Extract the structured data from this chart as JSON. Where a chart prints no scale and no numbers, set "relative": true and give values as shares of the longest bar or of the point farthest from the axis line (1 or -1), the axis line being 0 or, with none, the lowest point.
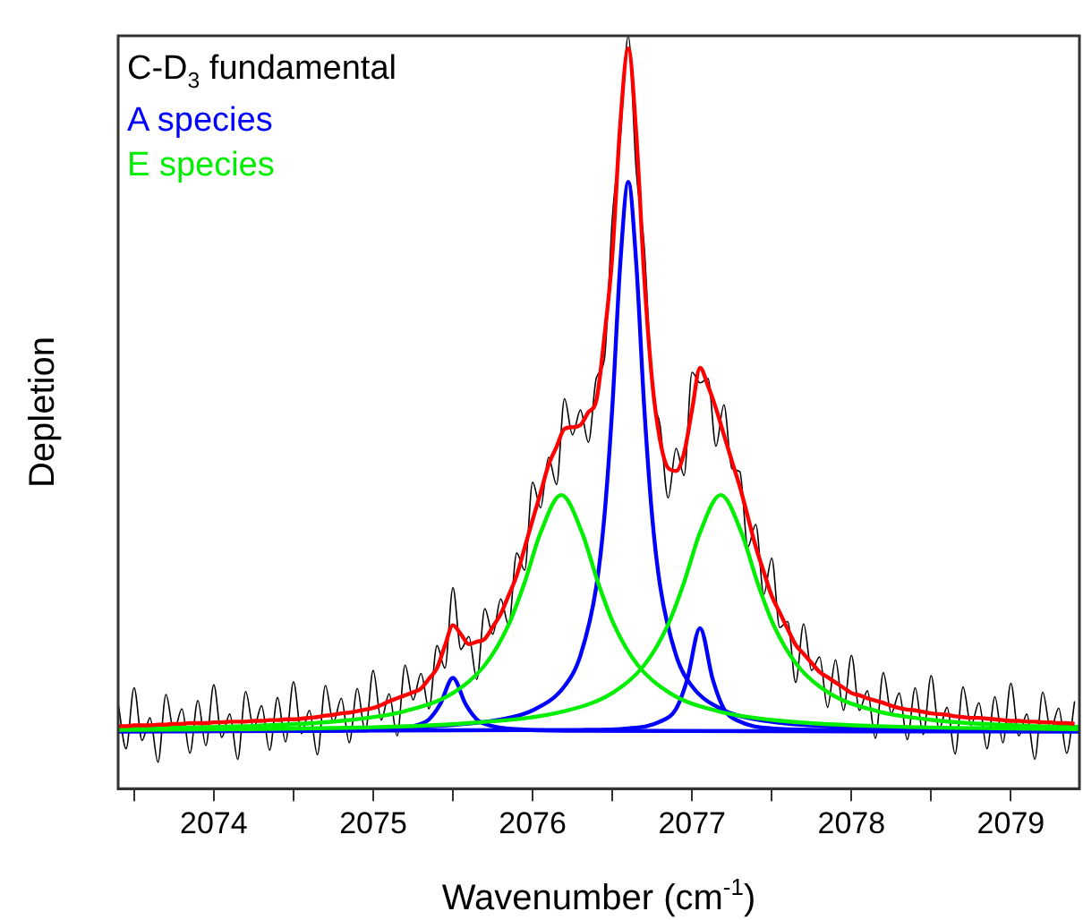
{
  "chart_data": {
    "type": "line",
    "relative": true,
    "title": "C-D$_{3}$ fundamental",
    "xlabel": "Wavenumber (cm$^{-1}$)",
    "ylabel": "Depletion",
    "xlim": [
      2073.4,
      2079.43
    ],
    "xticks": [
      {
        "value": 2073.5,
        "label": null
      },
      2074,
      {
        "value": 2074.5,
        "label": null
      },
      2075,
      {
        "value": 2075.5,
        "label": null
      },
      2076,
      {
        "value": 2076.5,
        "label": null
      },
      2077,
      {
        "value": 2077.5,
        "label": null
      },
      2078,
      {
        "value": 2078.5,
        "label": null
      },
      2079
    ],
    "legend": "top left",
    "marker": "none",
    "grid": false,
    "tick_labels": "x",
    "x": [
      2073.4,
      2073.45,
      2073.5,
      2073.55,
      2073.6,
      2073.65,
      2073.7,
      2073.75,
      2073.8,
      2073.85,
      2073.9,
      2073.95,
      2074.0,
      2074.05,
      2074.1,
      2074.15,
      2074.2,
      2074.25,
      2074.3,
      2074.35,
      2074.4,
      2074.45,
      2074.5,
      2074.55,
      2074.6,
      2074.65,
      2074.7,
      2074.75,
      2074.8,
      2074.85,
      2074.9,
      2074.95,
      2075.0,
      2075.05,
      2075.1,
      2075.15,
      2075.2,
      2075.25,
      2075.3,
      2075.35,
      2075.4,
      2075.45,
      2075.5,
      2075.55,
      2075.6,
      2075.65,
      2075.7,
      2075.75,
      2075.8,
      2075.85,
      2075.9,
      2075.95,
      2076.0,
      2076.05,
      2076.1,
      2076.15,
      2076.2,
      2076.25,
      2076.3,
      2076.35,
      2076.4,
      2076.45,
      2076.5,
      2076.55,
      2076.6,
      2076.65,
      2076.7,
      2076.75,
      2076.8,
      2076.85,
      2076.9,
      2076.95,
      2077.0,
      2077.05,
      2077.1,
      2077.15,
      2077.2,
      2077.25,
      2077.3,
      2077.35,
      2077.4,
      2077.45,
      2077.5,
      2077.55,
      2077.6,
      2077.65,
      2077.7,
      2077.75,
      2077.8,
      2077.85,
      2077.9,
      2077.95,
      2078.0,
      2078.05,
      2078.1,
      2078.15,
      2078.2,
      2078.25,
      2078.3,
      2078.35,
      2078.4,
      2078.45,
      2078.5,
      2078.55,
      2078.6,
      2078.65,
      2078.7,
      2078.75,
      2078.8,
      2078.85,
      2078.9,
      2078.95,
      2079.0,
      2079.05,
      2079.1,
      2079.15,
      2079.2,
      2079.25,
      2079.3,
      2079.35,
      2079.4
    ],
    "series": [
      {
        "color": "#000000",
        "values": [
          0.113,
          0.053,
          0.134,
          0.064,
          0.094,
          0.035,
          0.125,
          0.076,
          0.106,
          0.047,
          0.117,
          0.057,
          0.138,
          0.068,
          0.099,
          0.039,
          0.129,
          0.08,
          0.11,
          0.051,
          0.121,
          0.062,
          0.142,
          0.073,
          0.104,
          0.045,
          0.137,
          0.088,
          0.12,
          0.061,
          0.133,
          0.075,
          0.157,
          0.091,
          0.126,
          0.07,
          0.164,
          0.118,
          0.153,
          0.106,
          0.19,
          0.16,
          0.267,
          0.185,
          0.202,
          0.145,
          0.239,
          0.205,
          0.252,
          0.217,
          0.313,
          0.29,
          0.407,
          0.373,
          0.44,
          0.404,
          0.518,
          0.47,
          0.503,
          0.46,
          0.546,
          0.57,
          0.758,
          0.864,
          1.0,
          0.82,
          0.72,
          0.531,
          0.482,
          0.386,
          0.452,
          0.416,
          0.553,
          0.539,
          0.545,
          0.455,
          0.51,
          0.425,
          0.421,
          0.321,
          0.351,
          0.258,
          0.306,
          0.214,
          0.222,
          0.141,
          0.219,
          0.157,
          0.175,
          0.108,
          0.171,
          0.104,
          0.177,
          0.104,
          0.13,
          0.067,
          0.154,
          0.1,
          0.127,
          0.065,
          0.134,
          0.072,
          0.15,
          0.079,
          0.108,
          0.046,
          0.135,
          0.084,
          0.114,
          0.053,
          0.122,
          0.061,
          0.14,
          0.07,
          0.099,
          0.039,
          0.128,
          0.078,
          0.107,
          0.047,
          0.116
        ]
      },
      {
        "name": "A species",
        "color": "#0000ff",
        "x": [
          2073.4,
          2074.5,
          2075.3,
          2075.8,
          2076.0,
          2076.2,
          2076.3,
          2076.4,
          2076.45,
          2076.5,
          2076.55,
          2076.6,
          2076.65,
          2076.7,
          2076.75,
          2076.8,
          2076.9,
          2077.0,
          2077.2,
          2077.4,
          2077.9,
          2078.6,
          2079.43
        ],
        "values": [
          0.077,
          0.078,
          0.082,
          0.092,
          0.104,
          0.136,
          0.177,
          0.269,
          0.361,
          0.507,
          0.698,
          0.806,
          0.698,
          0.507,
          0.361,
          0.269,
          0.177,
          0.136,
          0.104,
          0.092,
          0.082,
          0.079,
          0.077
        ]
      },
      {
        "color": "#0000ff",
        "x": [
          2073.4,
          2074.8,
          2075.1,
          2075.25,
          2075.35,
          2075.42,
          2075.5,
          2075.58,
          2075.65,
          2075.75,
          2075.9,
          2076.2,
          2079.43
        ],
        "values": [
          0.076,
          0.077,
          0.079,
          0.083,
          0.092,
          0.112,
          0.147,
          0.112,
          0.092,
          0.083,
          0.079,
          0.077,
          0.076
        ]
      },
      {
        "color": "#0000ff",
        "x": [
          2073.4,
          2076.3,
          2076.6,
          2076.8,
          2076.9,
          2076.97,
          2077.05,
          2077.13,
          2077.2,
          2077.3,
          2077.5,
          2077.8,
          2079.43
        ],
        "values": [
          0.076,
          0.078,
          0.08,
          0.089,
          0.106,
          0.145,
          0.213,
          0.145,
          0.106,
          0.089,
          0.08,
          0.078,
          0.076
        ]
      },
      {
        "name": "E species",
        "color": "#00ee00",
        "x": [
          2073.4,
          2074.2,
          2074.8,
          2075.2,
          2075.5,
          2075.7,
          2075.85,
          2075.95,
          2076.05,
          2076.18,
          2076.31,
          2076.41,
          2076.51,
          2076.66,
          2076.86,
          2077.16,
          2077.56,
          2078.16,
          2079.43
        ],
        "values": [
          0.08,
          0.083,
          0.09,
          0.103,
          0.127,
          0.164,
          0.218,
          0.274,
          0.34,
          0.39,
          0.34,
          0.274,
          0.218,
          0.164,
          0.127,
          0.103,
          0.09,
          0.083,
          0.079
        ]
      },
      {
        "color": "#00ee00",
        "x": [
          2073.4,
          2074.9,
          2075.6,
          2076.2,
          2076.5,
          2076.7,
          2076.85,
          2076.95,
          2077.05,
          2077.18,
          2077.31,
          2077.41,
          2077.51,
          2077.66,
          2077.86,
          2078.16,
          2078.56,
          2079.16,
          2079.43
        ],
        "values": [
          0.078,
          0.081,
          0.087,
          0.103,
          0.127,
          0.164,
          0.218,
          0.274,
          0.34,
          0.39,
          0.34,
          0.274,
          0.218,
          0.164,
          0.127,
          0.103,
          0.09,
          0.083,
          0.082
        ]
      },
      {
        "color": "#ff0000",
        "values": [
          0.083,
          0.083,
          0.084,
          0.084,
          0.084,
          0.085,
          0.085,
          0.086,
          0.086,
          0.087,
          0.087,
          0.087,
          0.088,
          0.088,
          0.089,
          0.089,
          0.089,
          0.09,
          0.09,
          0.091,
          0.091,
          0.092,
          0.092,
          0.093,
          0.094,
          0.095,
          0.097,
          0.098,
          0.1,
          0.101,
          0.103,
          0.105,
          0.107,
          0.111,
          0.116,
          0.12,
          0.124,
          0.128,
          0.133,
          0.146,
          0.16,
          0.19,
          0.217,
          0.205,
          0.192,
          0.195,
          0.199,
          0.215,
          0.232,
          0.257,
          0.283,
          0.32,
          0.357,
          0.393,
          0.43,
          0.454,
          0.478,
          0.48,
          0.483,
          0.5,
          0.516,
          0.6,
          0.708,
          0.884,
          0.983,
          0.87,
          0.68,
          0.541,
          0.462,
          0.426,
          0.422,
          0.446,
          0.503,
          0.559,
          0.535,
          0.505,
          0.47,
          0.435,
          0.401,
          0.361,
          0.321,
          0.288,
          0.256,
          0.234,
          0.212,
          0.191,
          0.179,
          0.167,
          0.155,
          0.148,
          0.141,
          0.134,
          0.127,
          0.124,
          0.12,
          0.117,
          0.114,
          0.11,
          0.107,
          0.105,
          0.104,
          0.102,
          0.1,
          0.099,
          0.098,
          0.096,
          0.095,
          0.094,
          0.094,
          0.093,
          0.092,
          0.091,
          0.09,
          0.09,
          0.089,
          0.089,
          0.088,
          0.088,
          0.087,
          0.087,
          0.086
        ]
      }
    ]
  }
}
